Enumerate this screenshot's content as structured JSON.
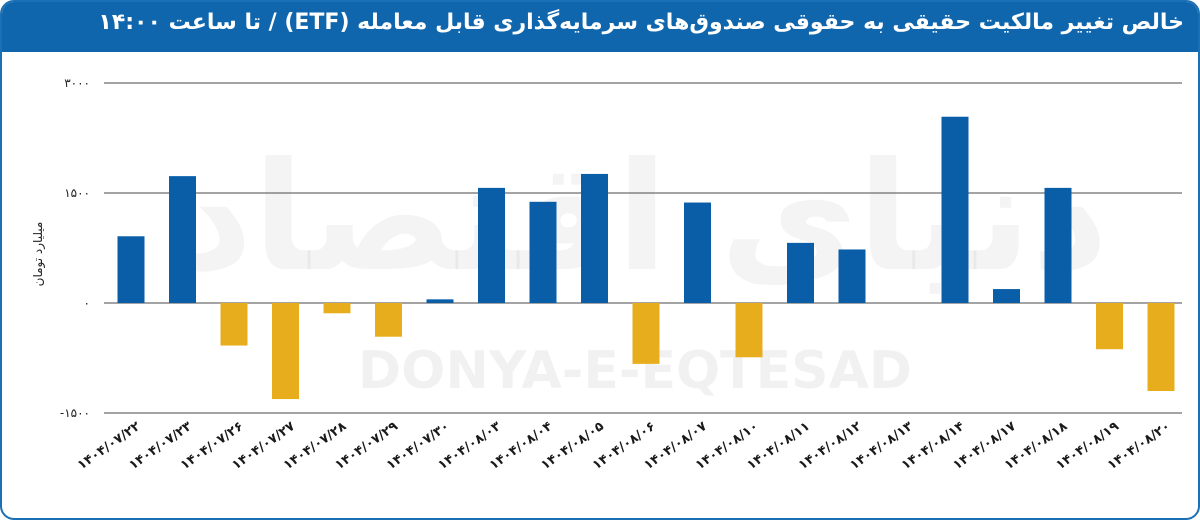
{
  "header": {
    "title": "خالص تغییر مالکیت حقیقی به حقوقی صندوق‌های سرمایه‌گذاری قابل معامله (ETF) / تا ساعت ۱۴:۰۰"
  },
  "watermark": {
    "latin": "DONYA-E-EQTESAD",
    "persian": "دنیای اقتصاد"
  },
  "colors": {
    "header": "#0f66ad",
    "positive": "#0a5ea8",
    "negative": "#e8ad1c"
  },
  "chart_data": {
    "type": "bar",
    "ylabel": "میلیارد تومان",
    "ylim": [
      -1500,
      3000
    ],
    "yticks": [
      3000,
      1500,
      0,
      -1500
    ],
    "ytick_labels": [
      "۳۰۰۰",
      "۱۵۰۰",
      "۰",
      "-۱۵۰۰"
    ],
    "categories": [
      "۱۴۰۴/۰۷/۲۲",
      "۱۴۰۴/۰۷/۲۳",
      "۱۴۰۴/۰۷/۲۶",
      "۱۴۰۴/۰۷/۲۷",
      "۱۴۰۴/۰۷/۲۸",
      "۱۴۰۴/۰۷/۲۹",
      "۱۴۰۴/۰۷/۳۰",
      "۱۴۰۴/۰۸/۰۳",
      "۱۴۰۴/۰۸/۰۴",
      "۱۴۰۴/۰۸/۰۵",
      "۱۴۰۴/۰۸/۰۶",
      "۱۴۰۴/۰۸/۰۷",
      "۱۴۰۴/۰۸/۱۰",
      "۱۴۰۴/۰۸/۱۱",
      "۱۴۰۴/۰۸/۱۲",
      "۱۴۰۴/۰۸/۱۳",
      "۱۴۰۴/۰۸/۱۴",
      "۱۴۰۴/۰۸/۱۷",
      "۱۴۰۴/۰۸/۱۸",
      "۱۴۰۴/۰۸/۱۹",
      "۱۴۰۴/۰۸/۲۰"
    ],
    "values": [
      910,
      1730,
      -580,
      -1310,
      -140,
      -460,
      50,
      1570,
      1380,
      1760,
      -830,
      1370,
      -740,
      820,
      730,
      0,
      2540,
      190,
      1570,
      -630,
      -1200
    ],
    "grid": true,
    "legend": "none"
  }
}
